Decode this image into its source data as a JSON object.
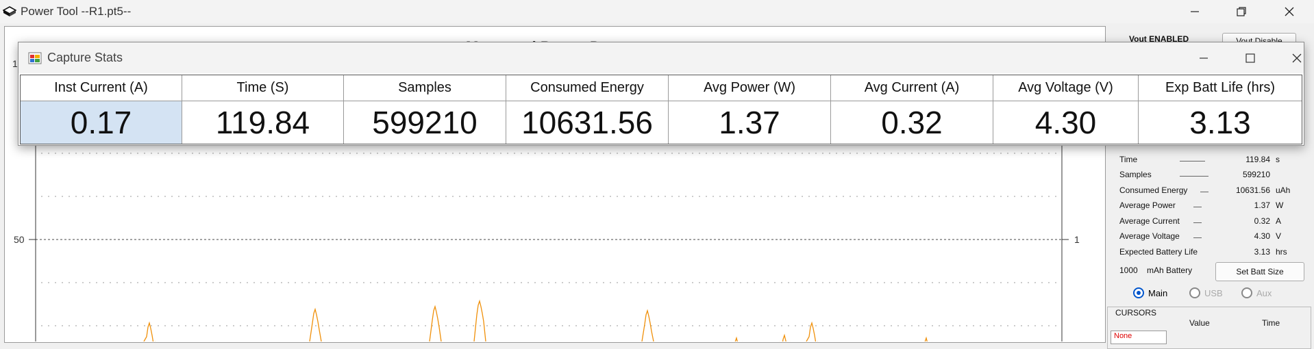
{
  "app": {
    "title": "Power Tool --R1.pt5--"
  },
  "chart_data": {
    "type": "line",
    "title": "Measured Power Data",
    "y_left_ticks": [
      {
        "label": "50",
        "value": 50
      }
    ],
    "y_right_ticks": [
      {
        "label": "1",
        "value": 1
      }
    ],
    "left_axis_top_label": "1",
    "series": [
      {
        "name": "",
        "color": "#f0900a"
      }
    ],
    "grid": true
  },
  "side_panel": {
    "vout_status": "Vout ENABLED",
    "vout_button": "Vout Disable",
    "stats": [
      {
        "label": "Time",
        "value": "119.84",
        "unit": "s"
      },
      {
        "label": "Samples",
        "value": "599210",
        "unit": ""
      },
      {
        "label": "Consumed Energy",
        "value": "10631.56",
        "unit": "uAh"
      },
      {
        "label": "Average Power",
        "value": "1.37",
        "unit": "W"
      },
      {
        "label": "Average Current",
        "value": "0.32",
        "unit": "A"
      },
      {
        "label": "Average Voltage",
        "value": "4.30",
        "unit": "V"
      },
      {
        "label": "Expected Battery Life",
        "value": "3.13",
        "unit": "hrs"
      }
    ],
    "battery_value": "1000",
    "battery_label": "mAh Battery",
    "battery_button": "Set Batt Size",
    "radios": [
      {
        "label": "Main",
        "selected": true
      },
      {
        "label": "USB",
        "selected": false
      },
      {
        "label": "Aux",
        "selected": false
      }
    ],
    "cursors_title": "CURSORS",
    "cursors_value_header": "Value",
    "cursors_time_header": "Time",
    "cursor_select": "None"
  },
  "dialog": {
    "title": "Capture Stats",
    "columns": [
      {
        "header": "Inst Current (A)",
        "value": "0.17"
      },
      {
        "header": "Time (S)",
        "value": "119.84"
      },
      {
        "header": "Samples",
        "value": "599210"
      },
      {
        "header": "Consumed Energy",
        "value": "10631.56"
      },
      {
        "header": "Avg Power (W)",
        "value": "1.37"
      },
      {
        "header": "Avg Current (A)",
        "value": "0.32"
      },
      {
        "header": "Avg Voltage (V)",
        "value": "4.30"
      },
      {
        "header": "Exp Batt Life (hrs)",
        "value": "3.13"
      }
    ]
  }
}
